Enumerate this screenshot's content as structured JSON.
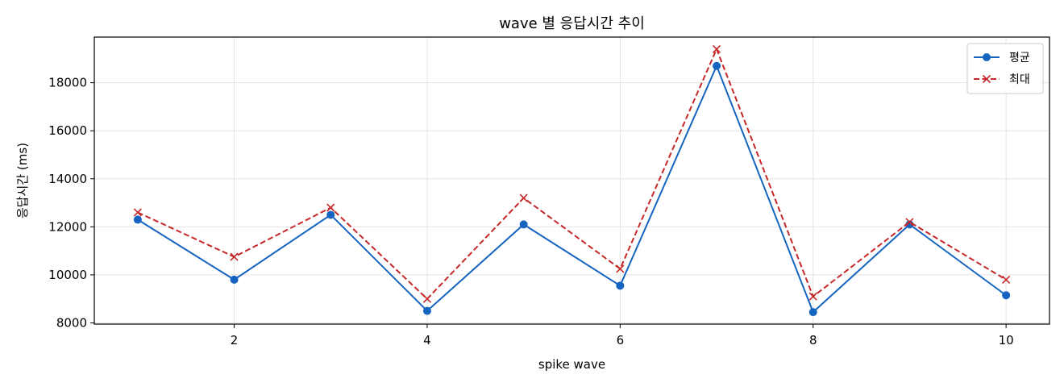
{
  "chart_data": {
    "type": "line",
    "title": "wave 별 응답시간 추이",
    "xlabel": "spike wave",
    "ylabel": "응답시간 (ms)",
    "x": [
      1,
      2,
      3,
      4,
      5,
      6,
      7,
      8,
      9,
      10
    ],
    "xticks": [
      2,
      4,
      6,
      8,
      10
    ],
    "xlim": [
      0.55,
      10.45
    ],
    "yticks": [
      8000,
      10000,
      12000,
      14000,
      16000,
      18000
    ],
    "ylim": [
      7950,
      19900
    ],
    "grid": true,
    "legend_position": "top-right",
    "series": [
      {
        "name": "평균",
        "color": "#1565c0",
        "marker": "circle",
        "line_style": "solid",
        "values": [
          12300,
          9800,
          12500,
          8500,
          12100,
          9550,
          18700,
          8450,
          12100,
          9150
        ]
      },
      {
        "name": "최대",
        "color": "#c62828",
        "marker": "x",
        "line_style": "dashed",
        "values": [
          12600,
          10750,
          12800,
          9000,
          13200,
          10250,
          19400,
          9100,
          12200,
          9800
        ]
      }
    ]
  }
}
